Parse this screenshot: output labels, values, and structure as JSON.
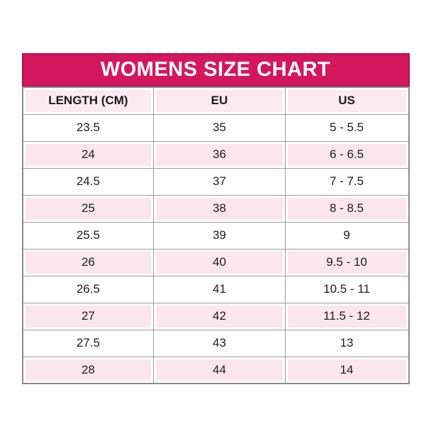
{
  "title": "WOMENS SIZE CHART",
  "chart_data": {
    "type": "table",
    "title": "WOMENS SIZE CHART",
    "columns": [
      "LENGTH (CM)",
      "EU",
      "US"
    ],
    "rows": [
      [
        "23.5",
        "35",
        "5 - 5.5"
      ],
      [
        "24",
        "36",
        "6 - 6.5"
      ],
      [
        "24.5",
        "37",
        "7 - 7.5"
      ],
      [
        "25",
        "38",
        "8 - 8.5"
      ],
      [
        "25.5",
        "39",
        "9"
      ],
      [
        "26",
        "40",
        "9.5 - 10"
      ],
      [
        "26.5",
        "41",
        "10.5 - 11"
      ],
      [
        "27",
        "42",
        "11.5 - 12"
      ],
      [
        "27.5",
        "43",
        "13"
      ],
      [
        "28",
        "44",
        "14"
      ]
    ]
  },
  "colors": {
    "banner_bg": "#d4175d",
    "banner_border": "#b11150",
    "title_text": "#ffffff",
    "header_row_bg": "#fbeaef",
    "row_pink": "#fae6ec",
    "row_white": "#ffffff",
    "grid_line": "#9c9c9c",
    "outer_border": "#8d8d8d",
    "text": "#1c1c1c"
  }
}
